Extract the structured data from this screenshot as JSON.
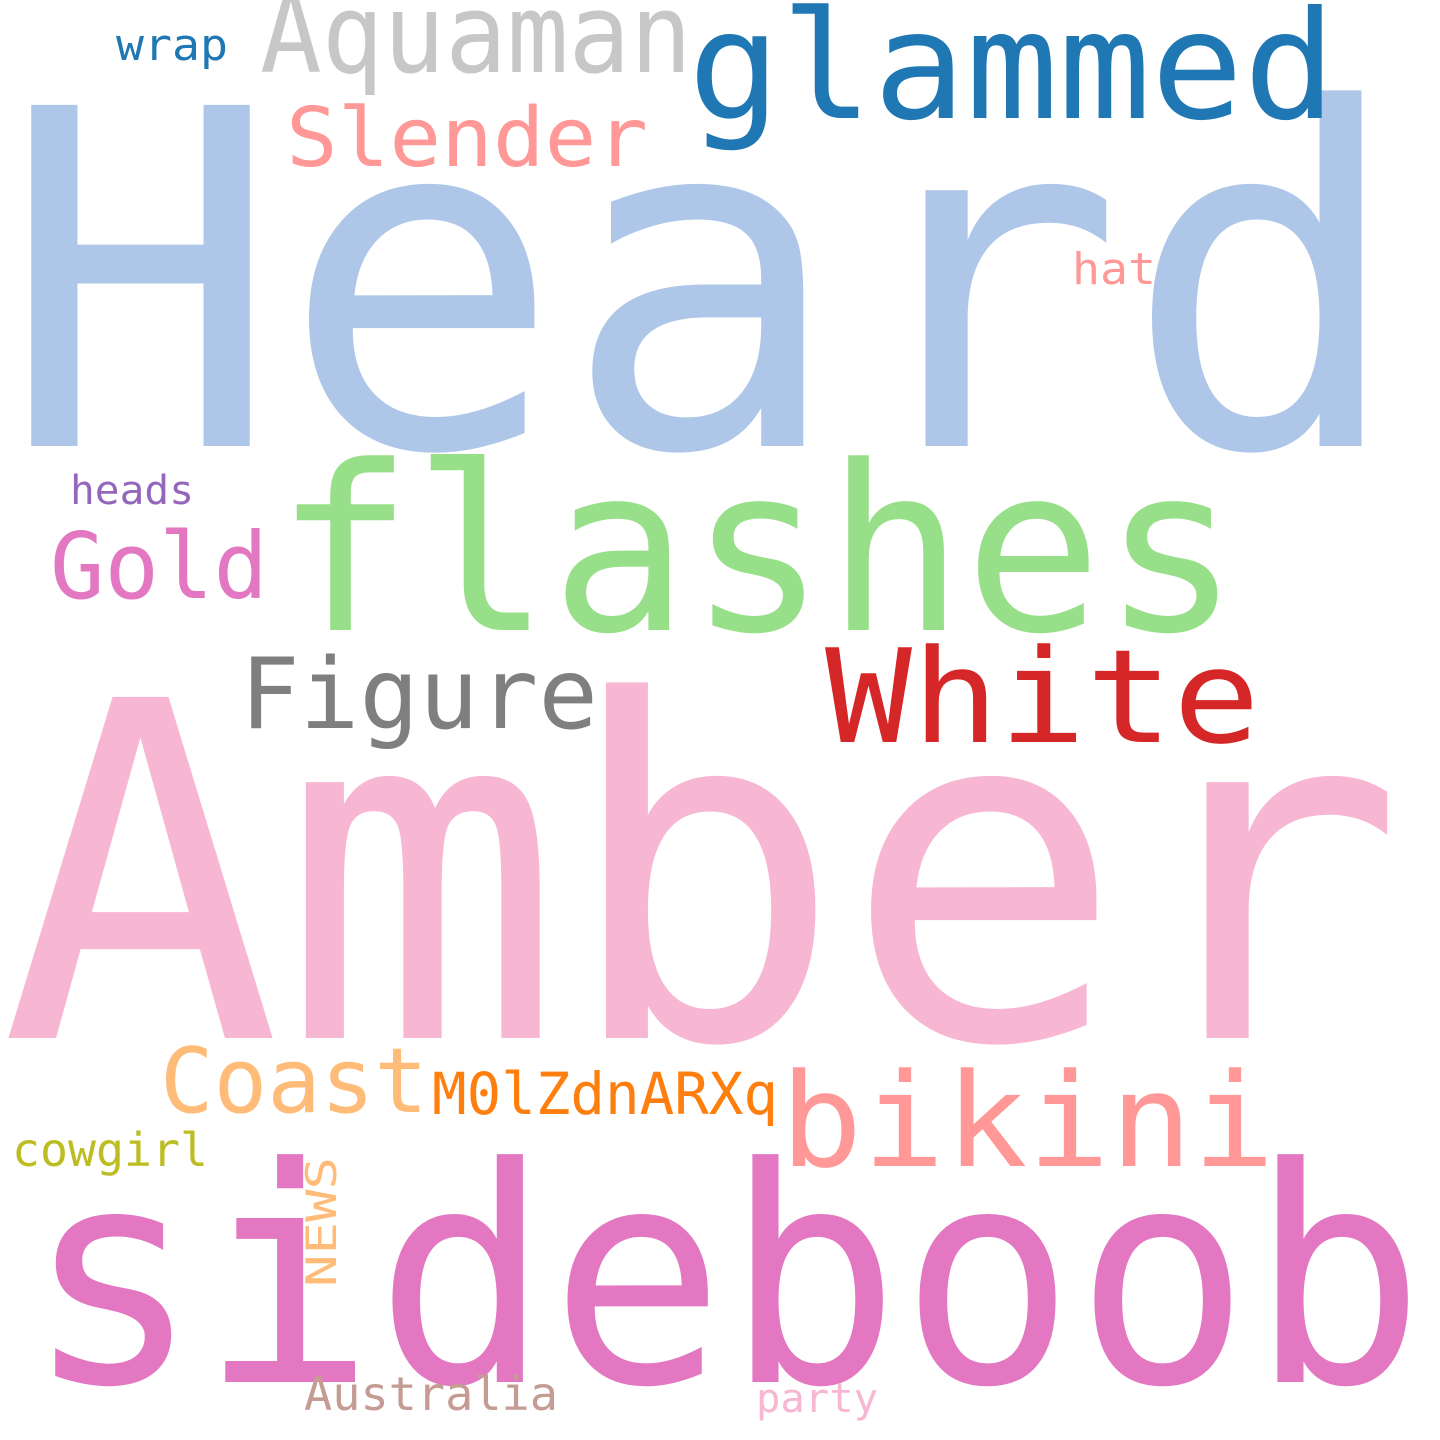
{
  "words": [
    {
      "id": "heard",
      "text": "Heard",
      "color": "#aec7e8"
    },
    {
      "id": "amber",
      "text": "Amber",
      "color": "#f7b6d2"
    },
    {
      "id": "sideboob",
      "text": "sideboob",
      "color": "#e377c2"
    },
    {
      "id": "flashes",
      "text": "flashes",
      "color": "#98df8a"
    },
    {
      "id": "glammed",
      "text": "glammed",
      "color": "#1f77b4"
    },
    {
      "id": "aquaman",
      "text": "Aquaman",
      "color": "#c7c7c7"
    },
    {
      "id": "white",
      "text": "White",
      "color": "#d62728"
    },
    {
      "id": "bikini",
      "text": "bikini",
      "color": "#ff9896"
    },
    {
      "id": "figure",
      "text": "Figure",
      "color": "#7f7f7f"
    },
    {
      "id": "slender",
      "text": "Slender",
      "color": "#ff9896"
    },
    {
      "id": "gold",
      "text": "Gold",
      "color": "#e377c2"
    },
    {
      "id": "coast",
      "text": "Coast",
      "color": "#ffbb78"
    },
    {
      "id": "code",
      "text": "M0lZdnARXq",
      "color": "#ff7f0e"
    },
    {
      "id": "news",
      "text": "NEWS",
      "color": "#ffbb78"
    },
    {
      "id": "cowgirl",
      "text": "cowgirl",
      "color": "#bcbd22"
    },
    {
      "id": "australia",
      "text": "Australia",
      "color": "#c49c94"
    },
    {
      "id": "party",
      "text": "party",
      "color": "#f7b6d2"
    },
    {
      "id": "heads",
      "text": "heads",
      "color": "#9467bd"
    },
    {
      "id": "wrap",
      "text": "wrap",
      "color": "#1f77b4"
    },
    {
      "id": "hat",
      "text": "hat",
      "color": "#ff9896"
    }
  ]
}
